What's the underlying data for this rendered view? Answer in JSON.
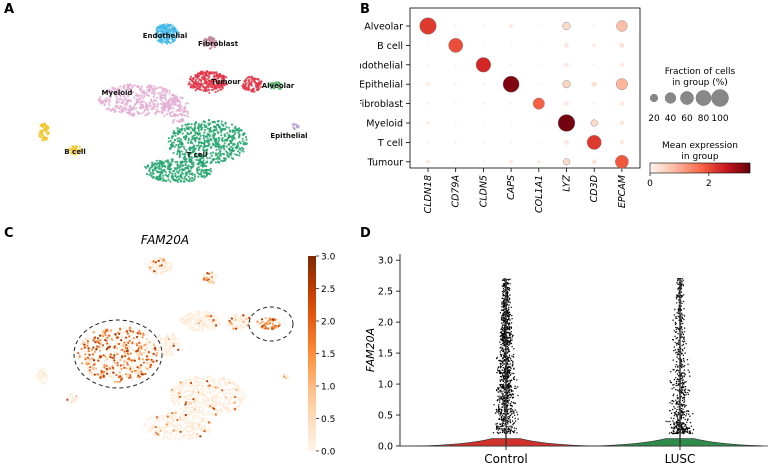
{
  "panel_labels": [
    "A",
    "B",
    "C",
    "D"
  ],
  "chart_data": [
    {
      "type": "scatter",
      "panel": "A",
      "title": "",
      "clusters": [
        {
          "name": "Endothelial",
          "color": "#3fb7e8"
        },
        {
          "name": "Fibroblast",
          "color": "#c38a9b"
        },
        {
          "name": "Tumour",
          "color": "#e03345"
        },
        {
          "name": "Alveolar",
          "color": "#5bb26b"
        },
        {
          "name": "Myeloid",
          "color": "#e3aed4"
        },
        {
          "name": "Epithelial",
          "color": "#b9a7d6"
        },
        {
          "name": "B cell",
          "color": "#f0c72f"
        },
        {
          "name": "T cell",
          "color": "#26a46e"
        }
      ]
    },
    {
      "type": "dotplot",
      "panel": "B",
      "rows": [
        "Alveolar",
        "B cell",
        "Endothelial",
        "Epithelial",
        "Fibroblast",
        "Myeloid",
        "T cell",
        "Tumour"
      ],
      "columns": [
        "CLDN18",
        "CD79A",
        "CLDN5",
        "CAPS",
        "COL1A1",
        "LYZ",
        "CD3D",
        "EPCAM"
      ],
      "fraction_pct": [
        [
          95,
          2,
          2,
          5,
          2,
          20,
          2,
          40
        ],
        [
          2,
          70,
          2,
          2,
          2,
          8,
          4,
          8
        ],
        [
          2,
          2,
          75,
          2,
          2,
          8,
          2,
          6
        ],
        [
          5,
          2,
          2,
          90,
          2,
          20,
          10,
          45
        ],
        [
          2,
          2,
          2,
          2,
          45,
          8,
          2,
          6
        ],
        [
          4,
          2,
          2,
          2,
          2,
          98,
          15,
          8
        ],
        [
          2,
          2,
          2,
          2,
          2,
          8,
          70,
          6
        ],
        [
          5,
          2,
          2,
          5,
          4,
          15,
          8,
          60
        ]
      ],
      "mean_expr": [
        [
          2.2,
          0.1,
          0.1,
          0.2,
          0.1,
          0.4,
          0.1,
          0.8
        ],
        [
          0.1,
          2.0,
          0.1,
          0.1,
          0.1,
          0.2,
          0.2,
          0.3
        ],
        [
          0.1,
          0.1,
          2.4,
          0.1,
          0.1,
          0.2,
          0.1,
          0.2
        ],
        [
          0.2,
          0.1,
          0.1,
          3.2,
          0.1,
          0.5,
          0.3,
          0.9
        ],
        [
          0.1,
          0.1,
          0.1,
          0.1,
          1.8,
          0.2,
          0.1,
          0.2
        ],
        [
          0.2,
          0.1,
          0.1,
          0.1,
          0.1,
          3.3,
          0.4,
          0.2
        ],
        [
          0.1,
          0.1,
          0.1,
          0.1,
          0.1,
          0.2,
          2.2,
          0.2
        ],
        [
          0.2,
          0.1,
          0.1,
          0.2,
          0.2,
          0.4,
          0.3,
          1.9
        ]
      ],
      "size_legend_title": [
        "Fraction of cells",
        "in group (%)"
      ],
      "size_legend_values": [
        20,
        40,
        60,
        80,
        100
      ],
      "color_legend_title": [
        "Mean expression",
        "in group"
      ],
      "color_range": [
        0,
        3.4
      ],
      "color_ticks": [
        0,
        2
      ]
    },
    {
      "type": "scatter",
      "panel": "C",
      "title": "FAM20A",
      "colorbar_range": [
        0,
        3.0
      ],
      "colorbar_ticks": [
        "0.0",
        "0.5",
        "1.0",
        "1.5",
        "2.0",
        "2.5",
        "3.0"
      ]
    },
    {
      "type": "violin",
      "panel": "D",
      "ylabel": "FAM20A",
      "ylim": [
        0,
        3.1
      ],
      "yticks": [
        "0.0",
        "0.5",
        "1.0",
        "1.5",
        "2.0",
        "2.5",
        "3.0"
      ],
      "groups": [
        {
          "name": "Control",
          "color": "#d1312c",
          "max": 2.7
        },
        {
          "name": "LUSC",
          "color": "#2e8b4a",
          "max": 2.7
        }
      ]
    }
  ]
}
